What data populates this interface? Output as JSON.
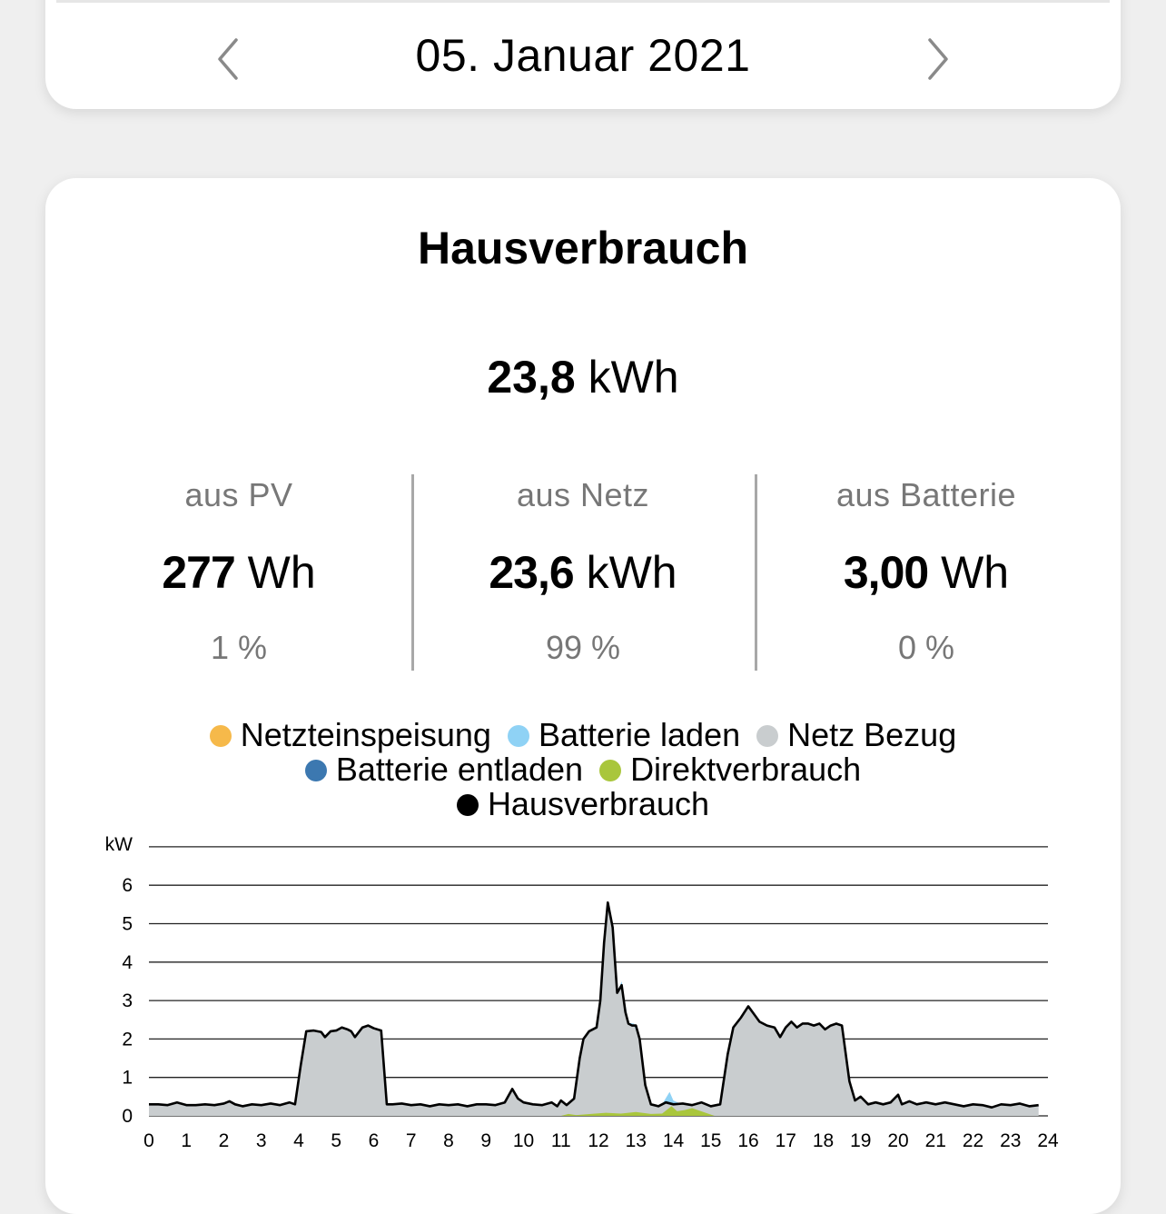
{
  "date_nav": {
    "date": "05. Januar 2021",
    "prev_icon": "chevron-left-icon",
    "next_icon": "chevron-right-icon"
  },
  "card": {
    "title": "Hausverbrauch",
    "total_value": "23,8",
    "total_unit": "kWh"
  },
  "stats": [
    {
      "label": "aus PV",
      "value": "277",
      "unit": "Wh",
      "percent": "1 %"
    },
    {
      "label": "aus Netz",
      "value": "23,6",
      "unit": "kWh",
      "percent": "99 %"
    },
    {
      "label": "aus Batterie",
      "value": "3,00",
      "unit": "Wh",
      "percent": "0 %"
    }
  ],
  "chart_data": {
    "type": "area",
    "ylabel": "kW",
    "ylim": [
      0,
      7
    ],
    "xlim": [
      0,
      24
    ],
    "x_ticks": [
      "0",
      "1",
      "2",
      "3",
      "4",
      "5",
      "6",
      "7",
      "8",
      "9",
      "10",
      "11",
      "12",
      "13",
      "14",
      "15",
      "16",
      "17",
      "18",
      "19",
      "20",
      "21",
      "22",
      "23",
      "24"
    ],
    "y_ticks": [
      "0",
      "1",
      "2",
      "3",
      "4",
      "5",
      "6"
    ],
    "grid": true,
    "legend_placement": "top",
    "legend": [
      {
        "name": "Netzteinspeisung",
        "color": "#f6b94a"
      },
      {
        "name": "Batterie laden",
        "color": "#8fd2f5"
      },
      {
        "name": "Netz Bezug",
        "color": "#c9cdcf"
      },
      {
        "name": "Batterie entladen",
        "color": "#3c78b0"
      },
      {
        "name": "Direktverbrauch",
        "color": "#a9c63c"
      },
      {
        "name": "Hausverbrauch",
        "color": "#000000"
      }
    ],
    "series": [
      {
        "name": "Hausverbrauch",
        "color": "#000000",
        "points": [
          [
            0,
            0.3
          ],
          [
            0.25,
            0.3
          ],
          [
            0.5,
            0.28
          ],
          [
            0.75,
            0.35
          ],
          [
            1,
            0.28
          ],
          [
            1.25,
            0.28
          ],
          [
            1.5,
            0.3
          ],
          [
            1.75,
            0.28
          ],
          [
            2,
            0.32
          ],
          [
            2.15,
            0.38
          ],
          [
            2.3,
            0.3
          ],
          [
            2.5,
            0.25
          ],
          [
            2.75,
            0.3
          ],
          [
            3,
            0.28
          ],
          [
            3.25,
            0.32
          ],
          [
            3.5,
            0.28
          ],
          [
            3.75,
            0.35
          ],
          [
            3.9,
            0.3
          ],
          [
            4.05,
            1.3
          ],
          [
            4.2,
            2.2
          ],
          [
            4.4,
            2.22
          ],
          [
            4.6,
            2.18
          ],
          [
            4.7,
            2.05
          ],
          [
            4.85,
            2.2
          ],
          [
            5.0,
            2.22
          ],
          [
            5.15,
            2.3
          ],
          [
            5.3,
            2.25
          ],
          [
            5.4,
            2.2
          ],
          [
            5.5,
            2.05
          ],
          [
            5.7,
            2.3
          ],
          [
            5.85,
            2.35
          ],
          [
            6.0,
            2.28
          ],
          [
            6.2,
            2.22
          ],
          [
            6.35,
            0.3
          ],
          [
            6.5,
            0.3
          ],
          [
            6.75,
            0.32
          ],
          [
            7,
            0.28
          ],
          [
            7.25,
            0.3
          ],
          [
            7.5,
            0.25
          ],
          [
            7.75,
            0.3
          ],
          [
            8,
            0.28
          ],
          [
            8.25,
            0.3
          ],
          [
            8.5,
            0.25
          ],
          [
            8.75,
            0.3
          ],
          [
            9,
            0.3
          ],
          [
            9.25,
            0.28
          ],
          [
            9.5,
            0.35
          ],
          [
            9.7,
            0.7
          ],
          [
            9.85,
            0.45
          ],
          [
            10,
            0.35
          ],
          [
            10.25,
            0.3
          ],
          [
            10.5,
            0.28
          ],
          [
            10.75,
            0.35
          ],
          [
            10.9,
            0.25
          ],
          [
            11.0,
            0.4
          ],
          [
            11.15,
            0.28
          ],
          [
            11.35,
            0.45
          ],
          [
            11.5,
            1.5
          ],
          [
            11.6,
            2.0
          ],
          [
            11.75,
            2.2
          ],
          [
            11.95,
            2.3
          ],
          [
            12.05,
            3.0
          ],
          [
            12.15,
            4.5
          ],
          [
            12.25,
            5.55
          ],
          [
            12.38,
            4.9
          ],
          [
            12.5,
            3.2
          ],
          [
            12.62,
            3.4
          ],
          [
            12.72,
            2.7
          ],
          [
            12.8,
            2.4
          ],
          [
            12.9,
            2.35
          ],
          [
            13.0,
            2.35
          ],
          [
            13.1,
            2.0
          ],
          [
            13.25,
            0.8
          ],
          [
            13.4,
            0.3
          ],
          [
            13.6,
            0.25
          ],
          [
            13.8,
            0.35
          ],
          [
            14.0,
            0.3
          ],
          [
            14.25,
            0.32
          ],
          [
            14.5,
            0.28
          ],
          [
            14.75,
            0.35
          ],
          [
            15.0,
            0.25
          ],
          [
            15.25,
            0.3
          ],
          [
            15.45,
            1.6
          ],
          [
            15.6,
            2.3
          ],
          [
            15.8,
            2.55
          ],
          [
            16.0,
            2.85
          ],
          [
            16.15,
            2.65
          ],
          [
            16.3,
            2.45
          ],
          [
            16.5,
            2.35
          ],
          [
            16.7,
            2.3
          ],
          [
            16.85,
            2.05
          ],
          [
            17.0,
            2.3
          ],
          [
            17.15,
            2.45
          ],
          [
            17.3,
            2.3
          ],
          [
            17.45,
            2.4
          ],
          [
            17.6,
            2.4
          ],
          [
            17.75,
            2.35
          ],
          [
            17.9,
            2.4
          ],
          [
            18.05,
            2.25
          ],
          [
            18.2,
            2.35
          ],
          [
            18.35,
            2.4
          ],
          [
            18.5,
            2.35
          ],
          [
            18.7,
            0.9
          ],
          [
            18.85,
            0.4
          ],
          [
            19.0,
            0.5
          ],
          [
            19.2,
            0.3
          ],
          [
            19.4,
            0.35
          ],
          [
            19.6,
            0.3
          ],
          [
            19.8,
            0.35
          ],
          [
            20.0,
            0.55
          ],
          [
            20.1,
            0.3
          ],
          [
            20.3,
            0.38
          ],
          [
            20.5,
            0.3
          ],
          [
            20.75,
            0.35
          ],
          [
            21,
            0.3
          ],
          [
            21.25,
            0.35
          ],
          [
            21.5,
            0.3
          ],
          [
            21.75,
            0.25
          ],
          [
            22,
            0.3
          ],
          [
            22.25,
            0.28
          ],
          [
            22.5,
            0.22
          ],
          [
            22.75,
            0.3
          ],
          [
            23,
            0.28
          ],
          [
            23.25,
            0.32
          ],
          [
            23.5,
            0.25
          ],
          [
            23.75,
            0.28
          ]
        ]
      },
      {
        "name": "Batterie laden",
        "color": "#8fd2f5",
        "points": [
          [
            12.5,
            0
          ],
          [
            12.62,
            0.1
          ],
          [
            12.8,
            0.02
          ],
          [
            12.95,
            0.05
          ],
          [
            13.1,
            0
          ],
          [
            13.7,
            0
          ],
          [
            13.9,
            0.3
          ],
          [
            14.0,
            0.1
          ],
          [
            14.2,
            0
          ]
        ]
      },
      {
        "name": "Direktverbrauch",
        "color": "#a9c63c",
        "points": [
          [
            11.0,
            0
          ],
          [
            11.2,
            0.05
          ],
          [
            11.4,
            0.02
          ],
          [
            11.8,
            0.05
          ],
          [
            12.2,
            0.08
          ],
          [
            12.6,
            0.06
          ],
          [
            13.0,
            0.1
          ],
          [
            13.4,
            0.05
          ],
          [
            13.7,
            0.06
          ],
          [
            13.95,
            0.25
          ],
          [
            14.1,
            0.12
          ],
          [
            14.3,
            0.15
          ],
          [
            14.5,
            0.2
          ],
          [
            14.8,
            0.1
          ],
          [
            15.1,
            0
          ]
        ]
      }
    ]
  }
}
